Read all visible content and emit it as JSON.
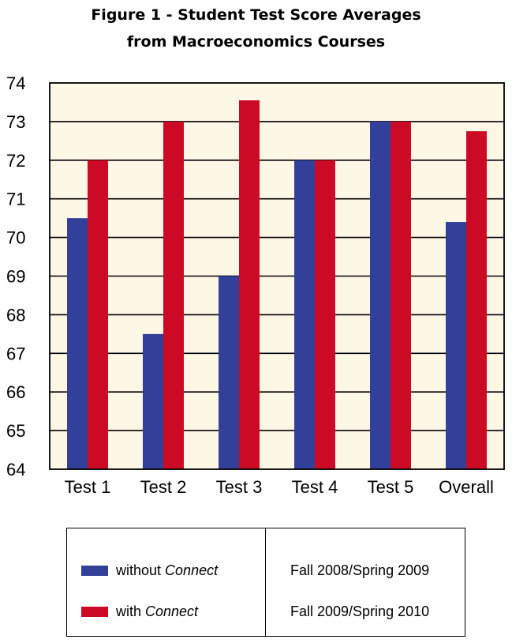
{
  "chart_data": {
    "type": "bar",
    "title_line1": "Figure 1 - Student Test Score Averages",
    "title_line2": "from Macroeconomics Courses",
    "categories": [
      "Test 1",
      "Test 2",
      "Test 3",
      "Test 4",
      "Test 5",
      "Overall"
    ],
    "series": [
      {
        "values": [
          70.5,
          67.5,
          69.0,
          72.0,
          73.0,
          70.4
        ],
        "color": "#33409a"
      },
      {
        "values": [
          72.0,
          73.0,
          73.55,
          72.0,
          73.0,
          72.75
        ],
        "color": "#cc0a25"
      }
    ],
    "ylim": [
      64,
      74
    ],
    "yticks": [
      64,
      65,
      66,
      67,
      68,
      69,
      70,
      71,
      72,
      73,
      74
    ],
    "grid": true,
    "plot_background": "#fdf7e6",
    "legend": {
      "series_labels": [
        {
          "prefix": "without ",
          "italic": "Connect"
        },
        {
          "prefix": "with ",
          "italic": "Connect"
        }
      ],
      "periods": [
        "Fall 2008/Spring 2009",
        "Fall 2009/Spring 2010"
      ]
    }
  }
}
